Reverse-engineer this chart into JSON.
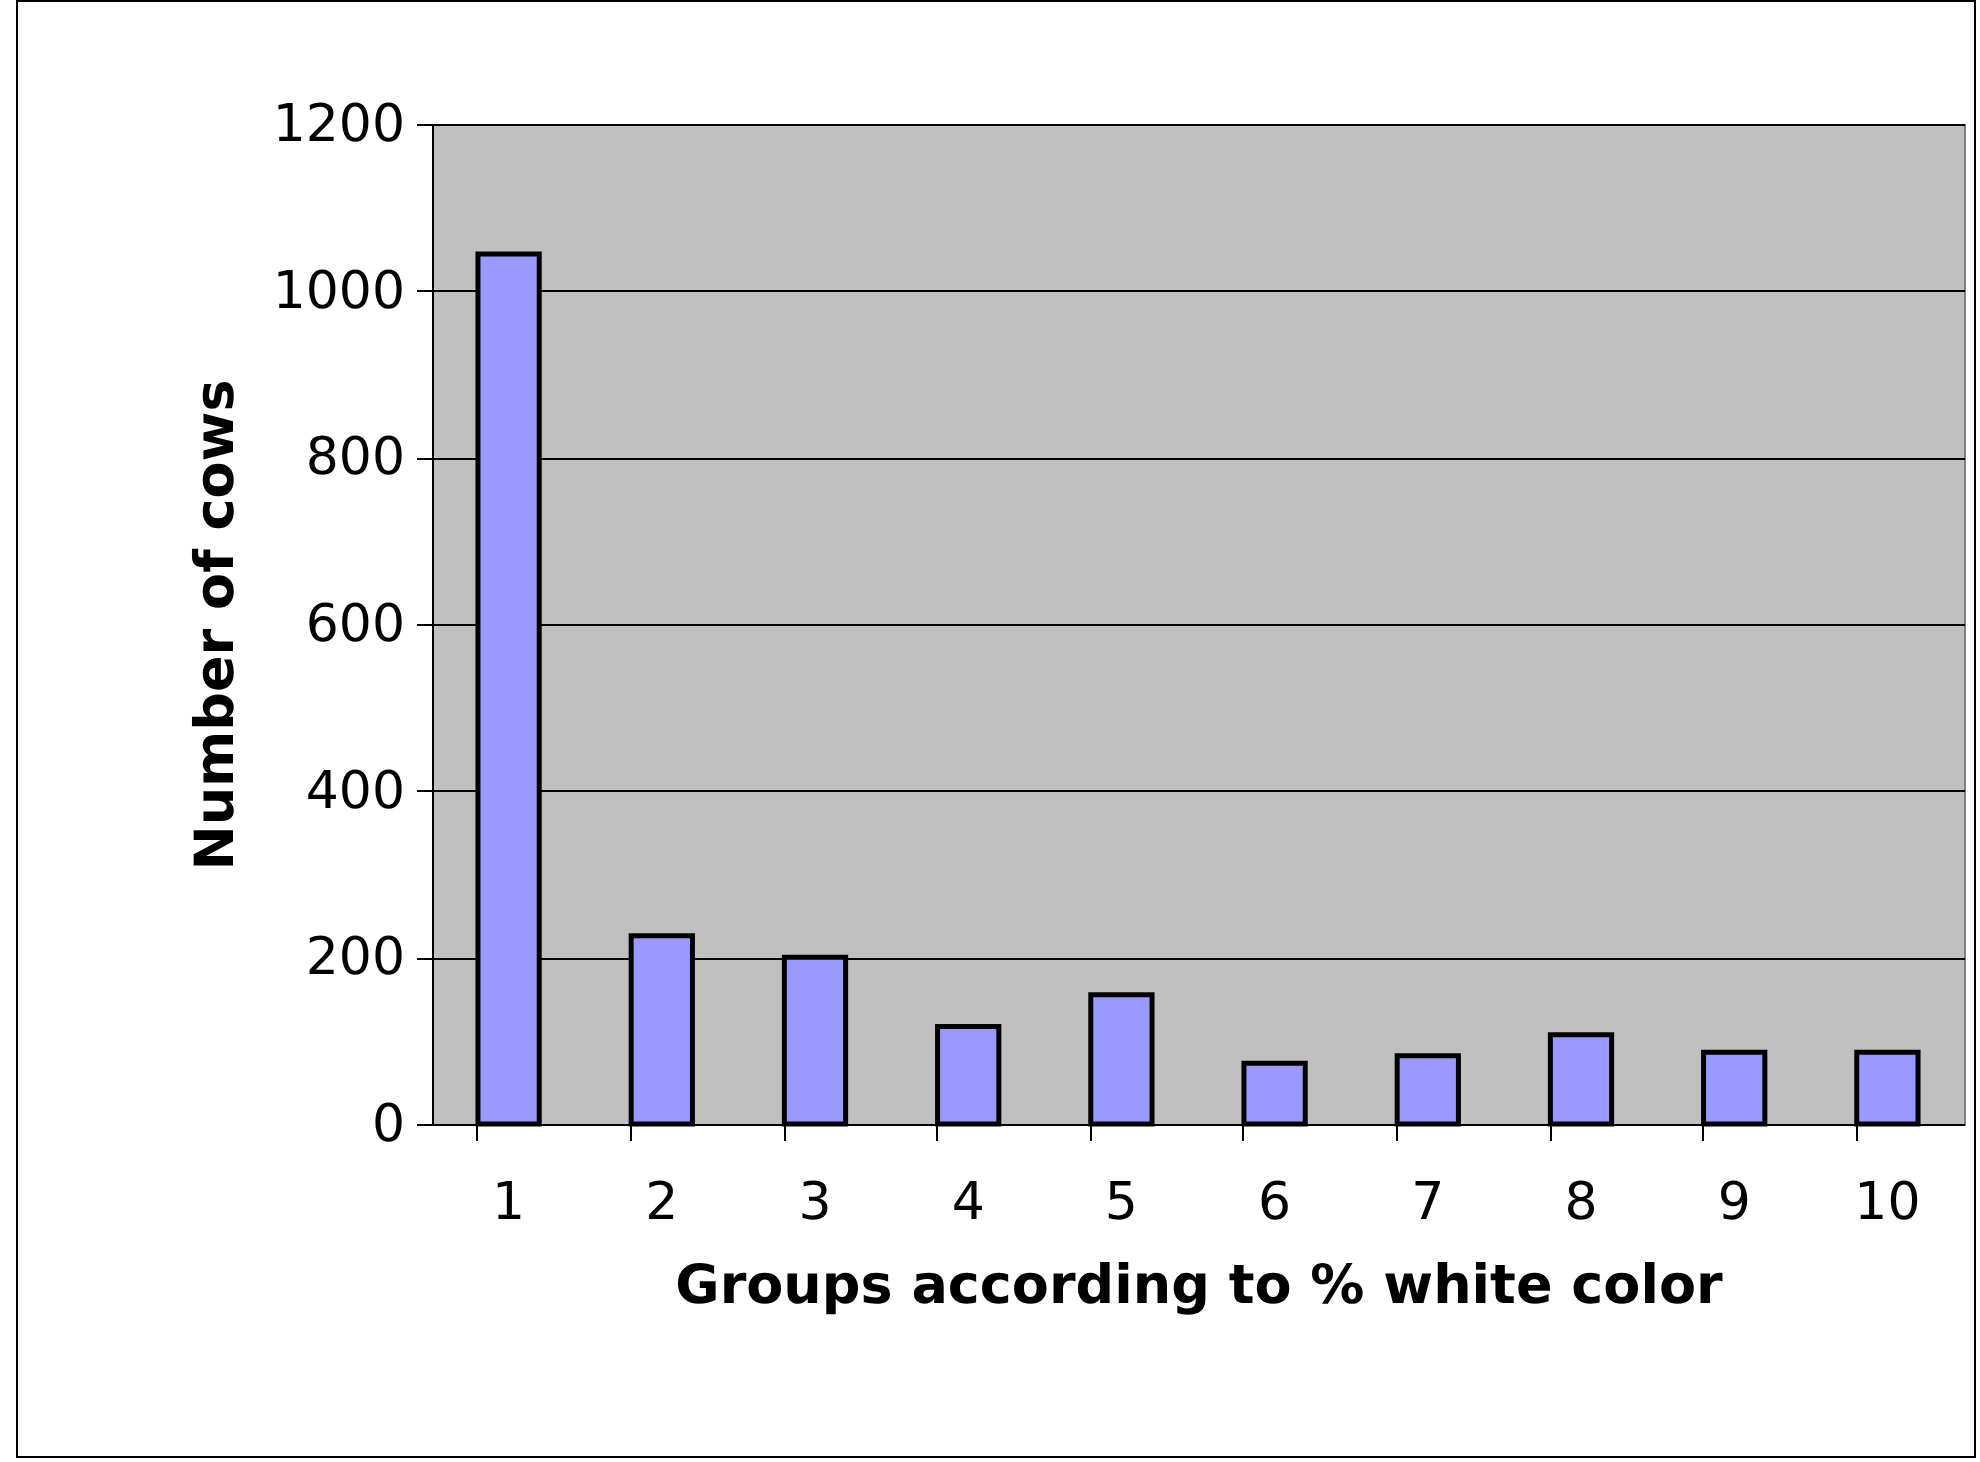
{
  "chart_data": {
    "type": "bar",
    "xlabel": "Groups according to % white color",
    "ylabel": "Number of cows",
    "categories": [
      "1",
      "2",
      "3",
      "4",
      "5",
      "6",
      "7",
      "8",
      "9",
      "10"
    ],
    "values": [
      1044,
      226,
      200,
      117,
      155,
      73,
      82,
      107,
      86,
      86
    ],
    "color": "#9999ff",
    "ylim": [
      0,
      1200
    ],
    "yticks": [
      0,
      200,
      400,
      600,
      800,
      1000,
      1200
    ],
    "grid": "y"
  }
}
